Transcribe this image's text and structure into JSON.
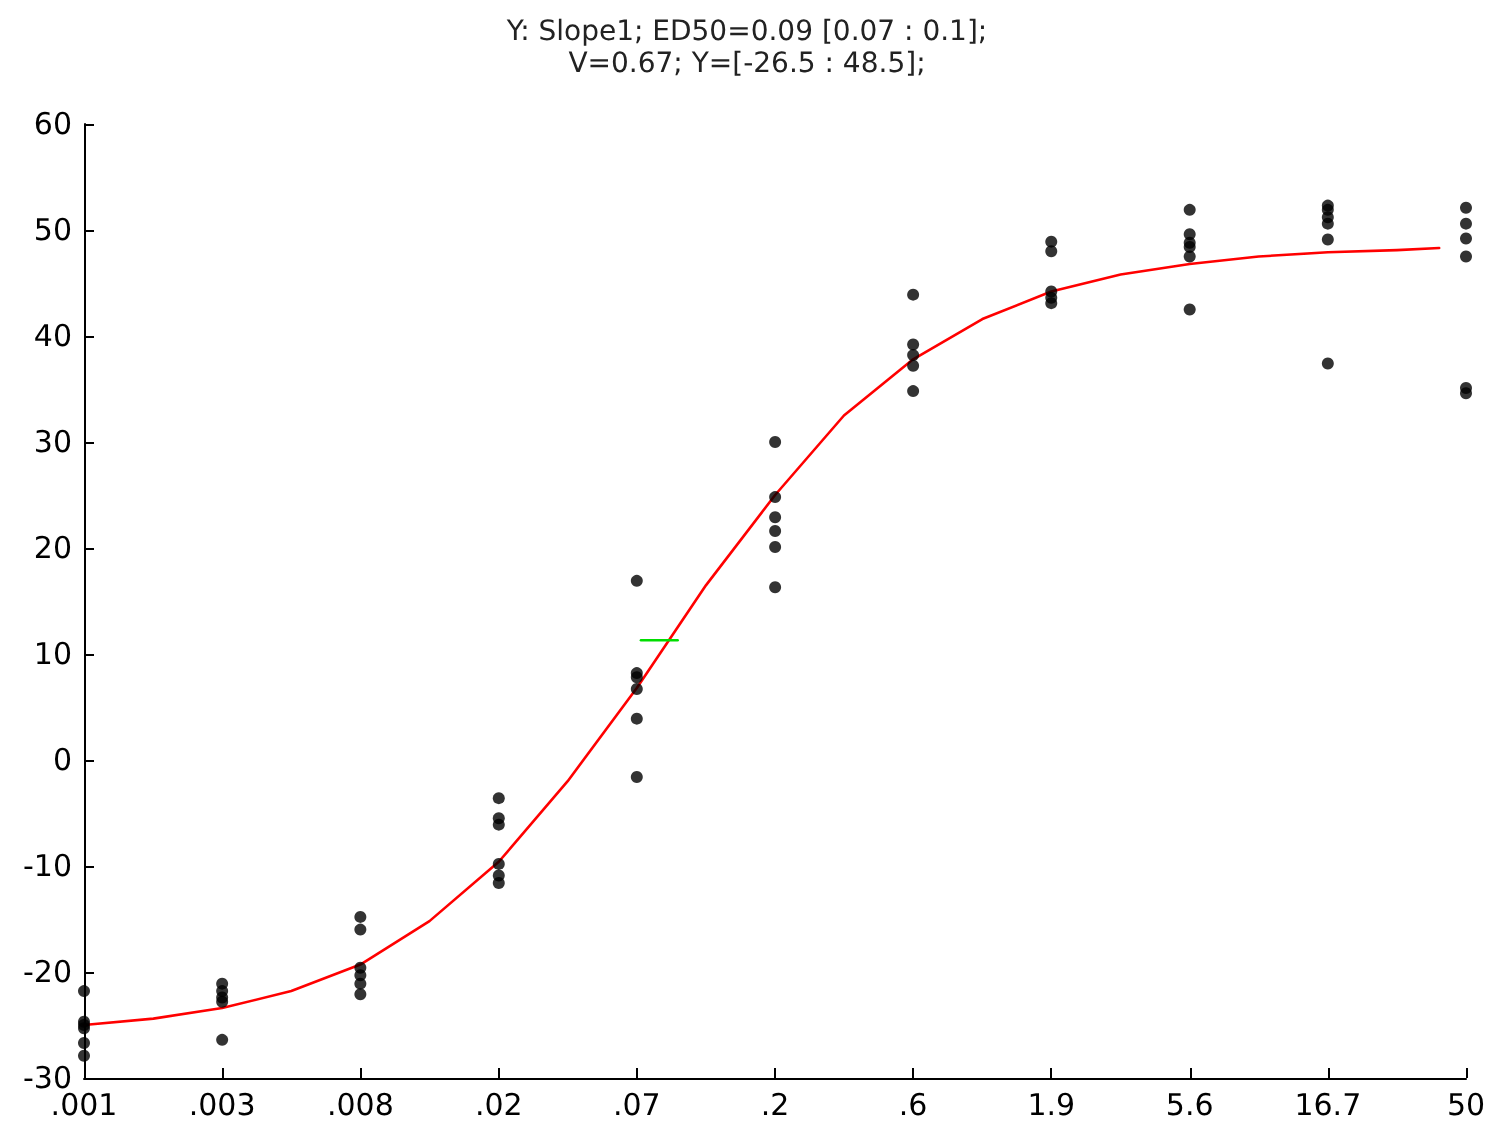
{
  "chart_data": {
    "type": "scatter",
    "title": "Y: Slope1; ED50=0.09 [0.07 : 0.1];",
    "subtitle": "V=0.67; Y=[-26.5 : 48.5];",
    "log": "x",
    "xlim": [
      0.000847,
      50
    ],
    "xticks": [
      {
        "value": 0.000847,
        "label": ".001"
      },
      {
        "value": 0.00254,
        "label": ".003"
      },
      {
        "value": 0.00762,
        "label": ".008"
      },
      {
        "value": 0.0229,
        "label": ".02"
      },
      {
        "value": 0.0686,
        "label": ".07"
      },
      {
        "value": 0.206,
        "label": ".2"
      },
      {
        "value": 0.617,
        "label": ".6"
      },
      {
        "value": 1.85,
        "label": "1.9"
      },
      {
        "value": 5.56,
        "label": "5.6"
      },
      {
        "value": 16.67,
        "label": "16.7"
      },
      {
        "value": 50,
        "label": "50"
      }
    ],
    "ylim": [
      -30,
      60
    ],
    "yticks": [
      -30,
      -20,
      -10,
      0,
      10,
      20,
      30,
      40,
      50,
      60
    ],
    "series": [
      {
        "type": "line",
        "color": "#ff0000",
        "marker": "none",
        "line_style": "solid",
        "x": [
          0.000847,
          0.00147,
          0.00254,
          0.0044,
          0.00762,
          0.0132,
          0.0229,
          0.0396,
          0.0686,
          0.119,
          0.206,
          0.356,
          0.617,
          1.07,
          1.85,
          3.21,
          5.56,
          9.62,
          16.67,
          28.9,
          40.4
        ],
        "values": [
          -25.0,
          -24.4,
          -23.4,
          -21.8,
          -19.3,
          -15.2,
          -9.6,
          -2.0,
          6.8,
          16.5,
          25.0,
          32.5,
          37.8,
          41.6,
          44.2,
          45.8,
          46.8,
          47.5,
          47.9,
          48.1,
          48.3
        ]
      },
      {
        "type": "line",
        "color": "#00dd00",
        "marker": "none",
        "line_style": "solid",
        "x": [
          0.0709,
          0.0949
        ],
        "values": [
          11.3,
          11.3
        ]
      },
      {
        "type": "scatter",
        "color": "#000000",
        "marker": "circle",
        "x": [
          0.000847,
          0.000847,
          0.000847,
          0.000847,
          0.000847,
          0.000847,
          0.00254,
          0.00254,
          0.00254,
          0.00254,
          0.00254,
          0.00762,
          0.00762,
          0.00762,
          0.00762,
          0.00762,
          0.00762,
          0.0229,
          0.0229,
          0.0229,
          0.0229,
          0.0229,
          0.0229,
          0.0686,
          0.0686,
          0.0686,
          0.0686,
          0.0686,
          0.0686,
          0.206,
          0.206,
          0.206,
          0.206,
          0.206,
          0.206,
          0.617,
          0.617,
          0.617,
          0.617,
          0.617,
          1.85,
          1.85,
          1.85,
          1.85,
          1.85,
          5.56,
          5.56,
          5.56,
          5.56,
          5.56,
          5.56,
          16.67,
          16.67,
          16.67,
          16.67,
          16.67,
          16.67,
          50,
          50,
          50,
          50,
          50,
          50
        ],
        "values": [
          -21.8,
          -24.7,
          -25.0,
          -25.3,
          -26.7,
          -27.9,
          -21.1,
          -21.8,
          -22.4,
          -22.8,
          -26.4,
          -14.8,
          -16.0,
          -19.6,
          -20.3,
          -21.1,
          -22.1,
          -3.6,
          -5.5,
          -6.1,
          -9.8,
          -10.9,
          -11.6,
          16.9,
          8.2,
          7.8,
          6.7,
          3.9,
          -1.6,
          30.0,
          24.8,
          22.9,
          21.6,
          20.1,
          16.3,
          43.9,
          39.2,
          38.2,
          37.2,
          34.8,
          48.9,
          48.0,
          44.2,
          43.6,
          43.1,
          51.9,
          49.6,
          48.8,
          48.4,
          47.5,
          42.5,
          52.3,
          51.9,
          51.2,
          50.6,
          49.1,
          37.4,
          52.1,
          50.6,
          49.2,
          47.5,
          35.1,
          34.6
        ]
      }
    ]
  }
}
